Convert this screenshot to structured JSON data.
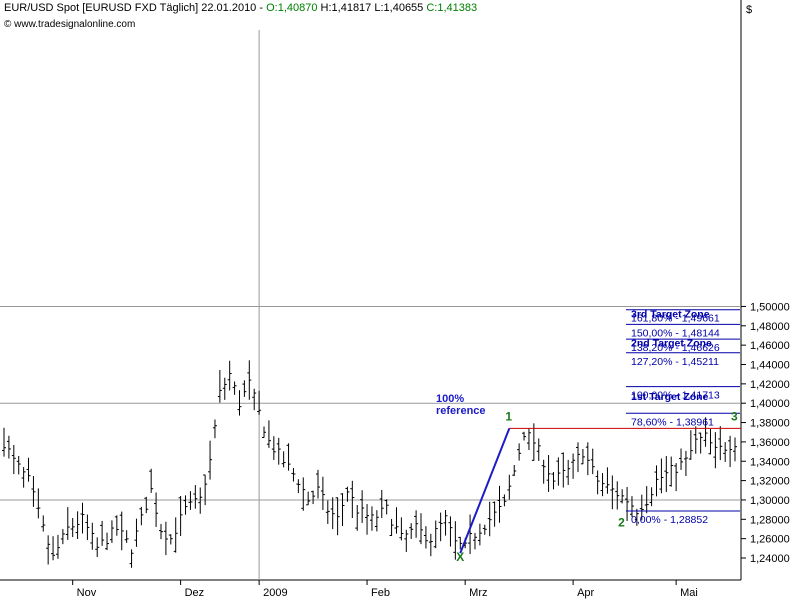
{
  "header": {
    "symbol": "EUR/USD Spot [EURUSD FXD  Täglich]",
    "date": "22.01.2010",
    "open": "O:1,40870",
    "high": "H:1,41817",
    "low": "L:1,40655",
    "close": "C:1,41383",
    "currency": "$"
  },
  "watermark": "© www.tradesignalonline.com",
  "chart_data": {
    "type": "ohlc",
    "ylim": [
      1.23,
      1.52
    ],
    "yticks": [
      "1,24000",
      "1,26000",
      "1,28000",
      "1,30000",
      "1,32000",
      "1,34000",
      "1,36000",
      "1,38000",
      "1,40000",
      "1,42000",
      "1,44000",
      "1,46000",
      "1,48000",
      "1,50000"
    ],
    "ytick_values": [
      1.24,
      1.26,
      1.28,
      1.3,
      1.32,
      1.34,
      1.36,
      1.38,
      1.4,
      1.42,
      1.44,
      1.46,
      1.48,
      1.5
    ],
    "x_month_labels": [
      {
        "label": "Nov",
        "bar": 14
      },
      {
        "label": "Dez",
        "bar": 36
      },
      {
        "label": "2009",
        "bar": 52
      },
      {
        "label": "Feb",
        "bar": 74
      },
      {
        "label": "Mrz",
        "bar": 94
      },
      {
        "label": "Apr",
        "bar": 116
      },
      {
        "label": "Mai",
        "bar": 137
      }
    ],
    "n_bars": 150,
    "anchors": [
      [
        0,
        1.36
      ],
      [
        2,
        1.34
      ],
      [
        5,
        1.32
      ],
      [
        8,
        1.27
      ],
      [
        10,
        1.24
      ],
      [
        13,
        1.27
      ],
      [
        16,
        1.28
      ],
      [
        19,
        1.25
      ],
      [
        23,
        1.27
      ],
      [
        26,
        1.25
      ],
      [
        30,
        1.31
      ],
      [
        32,
        1.27
      ],
      [
        34,
        1.26
      ],
      [
        37,
        1.29
      ],
      [
        40,
        1.3
      ],
      [
        42,
        1.34
      ],
      [
        44,
        1.41
      ],
      [
        46,
        1.43
      ],
      [
        48,
        1.4
      ],
      [
        50,
        1.42
      ],
      [
        52,
        1.39
      ],
      [
        54,
        1.36
      ],
      [
        57,
        1.34
      ],
      [
        60,
        1.32
      ],
      [
        62,
        1.3
      ],
      [
        64,
        1.31
      ],
      [
        66,
        1.29
      ],
      [
        68,
        1.28
      ],
      [
        70,
        1.31
      ],
      [
        72,
        1.29
      ],
      [
        75,
        1.28
      ],
      [
        78,
        1.29
      ],
      [
        81,
        1.26
      ],
      [
        84,
        1.27
      ],
      [
        87,
        1.26
      ],
      [
        90,
        1.28
      ],
      [
        92,
        1.255
      ],
      [
        94,
        1.25
      ],
      [
        95,
        1.26
      ],
      [
        97,
        1.27
      ],
      [
        99,
        1.28
      ],
      [
        102,
        1.295
      ],
      [
        104,
        1.33
      ],
      [
        106,
        1.37
      ],
      [
        108,
        1.36
      ],
      [
        110,
        1.34
      ],
      [
        112,
        1.32
      ],
      [
        115,
        1.33
      ],
      [
        118,
        1.35
      ],
      [
        121,
        1.32
      ],
      [
        124,
        1.31
      ],
      [
        127,
        1.3
      ],
      [
        129,
        1.29
      ],
      [
        131,
        1.3
      ],
      [
        133,
        1.32
      ],
      [
        136,
        1.33
      ],
      [
        139,
        1.34
      ],
      [
        141,
        1.36
      ],
      [
        143,
        1.365
      ],
      [
        145,
        1.35
      ],
      [
        147,
        1.355
      ],
      [
        149,
        1.36
      ]
    ],
    "horizontal_lines": [
      1.3,
      1.4,
      1.5
    ],
    "vertical_lines": [
      {
        "label": "2009",
        "bar": 52
      }
    ],
    "fib_levels": [
      {
        "value": 1.49661,
        "label": "161,80% - 1,49661",
        "zone": "3rd Target Zone"
      },
      {
        "value": 1.48144,
        "label": "150,00% - 1,48144",
        "zone": null
      },
      {
        "value": 1.46626,
        "label": "138,20% - 1,46626",
        "zone": "2nd Target Zone"
      },
      {
        "value": 1.45211,
        "label": "127,20% - 1,45211",
        "zone": null
      },
      {
        "value": 1.41713,
        "label": "100,00% - 1,41713",
        "zone": "1st Target Zone"
      },
      {
        "value": 1.38961,
        "label": "78,60% - 1,38961",
        "zone": null
      },
      {
        "value": 1.28852,
        "label": "0,00% - 1,28852",
        "zone": null
      }
    ],
    "zone_label_values": [
      {
        "text": "3rd Target Zone",
        "value": 1.4885
      },
      {
        "text": "2nd Target Zone",
        "value": 1.4585
      },
      {
        "text": "1st Target Zone",
        "value": 1.4035
      }
    ],
    "wave_points": [
      {
        "label": "X",
        "bar": 93,
        "value": 1.245
      },
      {
        "label": "1",
        "bar": 103,
        "value": 1.374
      },
      {
        "label": "2",
        "bar": 126,
        "value": 1.288
      },
      {
        "label": "3",
        "bar": 149,
        "value": 1.374
      }
    ],
    "resistance": {
      "value": 1.374,
      "from_bar": 103,
      "to_bar": 149
    },
    "reference": {
      "text_line1": "100%",
      "text_line2": "reference",
      "from_bar": 93,
      "from_value": 1.245,
      "to_bar": 103,
      "to_value": 1.374
    },
    "colors": {
      "bars": "#000000",
      "fib": "#0000aa",
      "wave_label": "#1a7a1a",
      "resistance": "#cc0000",
      "reference": "#1b1bc8",
      "grid": "#999999",
      "axis": "#000000"
    }
  }
}
